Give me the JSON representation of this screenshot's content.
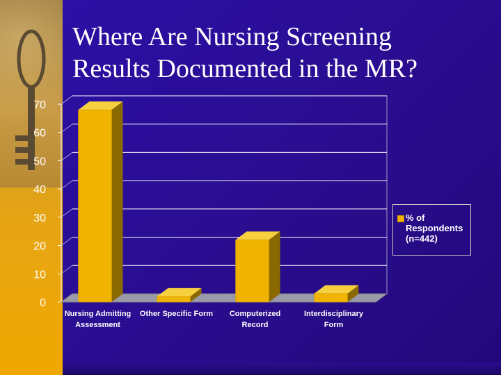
{
  "slide": {
    "title_line1": "Where Are Nursing Screening",
    "title_line2": "Results Documented in the MR?"
  },
  "colors": {
    "background": "#2a0d8f",
    "bar_front": "#f0b400",
    "bar_side": "#8a6a00",
    "bar_top": "#f7d040",
    "gridline": "#ffffff",
    "text": "#ffffff"
  },
  "chart_data": {
    "type": "bar",
    "title": "",
    "xlabel": "",
    "ylabel": "",
    "categories": [
      [
        "Nursing Admitting",
        "Assessment"
      ],
      [
        "Other Specific Form"
      ],
      [
        "Computerized",
        "Record"
      ],
      [
        "Interdisciplinary",
        "Form"
      ]
    ],
    "series": [
      {
        "name": "% of Respondents (n=442)",
        "values": [
          68,
          2,
          22,
          3
        ]
      }
    ],
    "ylim": [
      0,
      70
    ],
    "yticks": [
      0,
      10,
      20,
      30,
      40,
      50,
      60,
      70
    ],
    "grid": true,
    "legend_position": "right",
    "legend": {
      "line1": "% of",
      "line2": "Respondents",
      "line3": "(n=442)"
    }
  }
}
